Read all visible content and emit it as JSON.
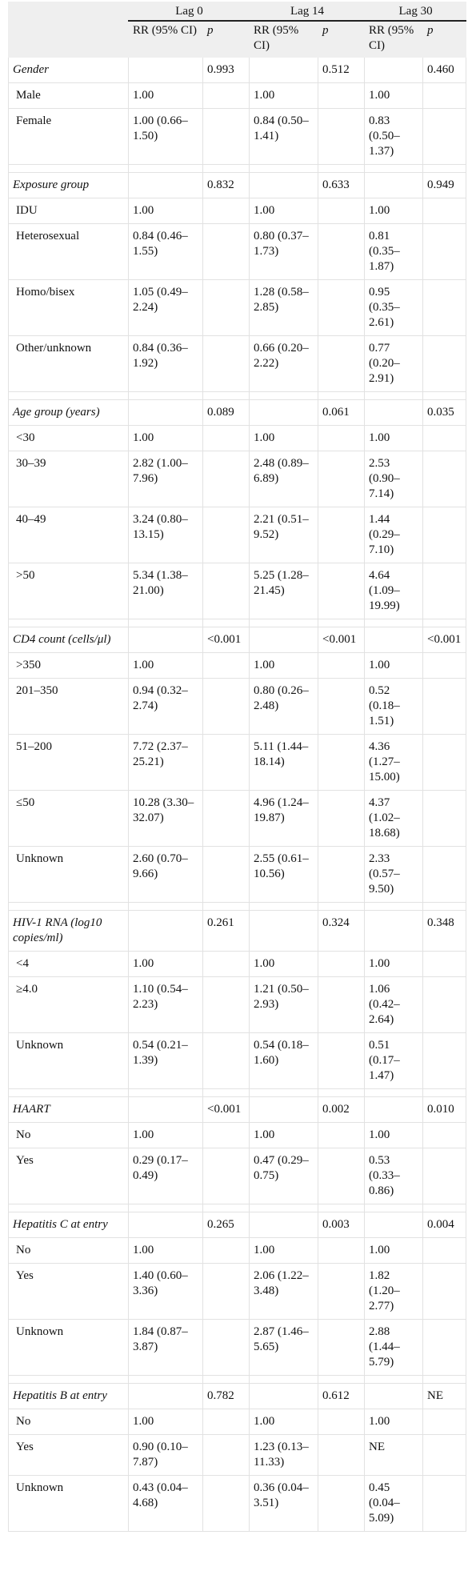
{
  "table": {
    "groups": [
      "Lag 0",
      "Lag 14",
      "Lag 30"
    ],
    "subheaders": [
      "RR (95% CI)",
      "p"
    ],
    "sections": [
      {
        "label": "Gender",
        "p": [
          "0.993",
          "0.512",
          "0.460"
        ],
        "rows": [
          [
            "Male",
            "1.00",
            "1.00",
            "1.00"
          ],
          [
            "Female",
            "1.00 (0.66–1.50)",
            "0.84 (0.50–1.41)",
            "0.83 (0.50–1.37)"
          ]
        ]
      },
      {
        "label": "Exposure group",
        "p": [
          "0.832",
          "0.633",
          "0.949"
        ],
        "rows": [
          [
            "IDU",
            "1.00",
            "1.00",
            "1.00"
          ],
          [
            "Heterosexual",
            "0.84 (0.46–1.55)",
            "0.80 (0.37–1.73)",
            "0.81 (0.35–1.87)"
          ],
          [
            "Homo/bisex",
            "1.05 (0.49–2.24)",
            "1.28 (0.58–2.85)",
            "0.95 (0.35–2.61)"
          ],
          [
            "Other/unknown",
            "0.84 (0.36–1.92)",
            "0.66 (0.20–2.22)",
            "0.77 (0.20–2.91)"
          ]
        ]
      },
      {
        "label": "Age group (years)",
        "p": [
          "0.089",
          "0.061",
          "0.035"
        ],
        "rows": [
          [
            "<30",
            "1.00",
            "1.00",
            "1.00"
          ],
          [
            "30–39",
            "2.82 (1.00–7.96)",
            "2.48 (0.89–6.89)",
            "2.53 (0.90–7.14)"
          ],
          [
            "40–49",
            "3.24 (0.80–13.15)",
            "2.21 (0.51–9.52)",
            "1.44 (0.29–7.10)"
          ],
          [
            ">50",
            "5.34 (1.38–21.00)",
            "5.25 (1.28–21.45)",
            "4.64 (1.09–19.99)"
          ]
        ]
      },
      {
        "label": "CD4 count (cells/μl)",
        "p": [
          "<0.001",
          "<0.001",
          "<0.001"
        ],
        "rows": [
          [
            ">350",
            "1.00",
            "1.00",
            "1.00"
          ],
          [
            "201–350",
            "0.94 (0.32–2.74)",
            "0.80 (0.26–2.48)",
            "0.52 (0.18–1.51)"
          ],
          [
            "51–200",
            "7.72 (2.37–25.21)",
            "5.11 (1.44–18.14)",
            "4.36 (1.27–15.00)"
          ],
          [
            "≤50",
            "10.28 (3.30–32.07)",
            "4.96 (1.24–19.87)",
            "4.37 (1.02–18.68)"
          ],
          [
            "Unknown",
            "2.60 (0.70–9.66)",
            "2.55 (0.61–10.56)",
            "2.33 (0.57–9.50)"
          ]
        ]
      },
      {
        "label": "HIV-1 RNA (log10 copies/ml)",
        "p": [
          "0.261",
          "0.324",
          "0.348"
        ],
        "rows": [
          [
            "<4",
            "1.00",
            "1.00",
            "1.00"
          ],
          [
            "≥4.0",
            "1.10 (0.54–2.23)",
            "1.21 (0.50–2.93)",
            "1.06 (0.42–2.64)"
          ],
          [
            "Unknown",
            "0.54 (0.21–1.39)",
            "0.54 (0.18–1.60)",
            "0.51 (0.17–1.47)"
          ]
        ]
      },
      {
        "label": "HAART",
        "p": [
          "<0.001",
          "0.002",
          "0.010"
        ],
        "rows": [
          [
            "No",
            "1.00",
            "1.00",
            "1.00"
          ],
          [
            "Yes",
            "0.29 (0.17–0.49)",
            "0.47 (0.29–0.75)",
            "0.53 (0.33–0.86)"
          ]
        ]
      },
      {
        "label": "Hepatitis C at entry",
        "p": [
          "0.265",
          "0.003",
          "0.004"
        ],
        "rows": [
          [
            "No",
            "1.00",
            "1.00",
            "1.00"
          ],
          [
            "Yes",
            "1.40 (0.60–3.36)",
            "2.06 (1.22–3.48)",
            "1.82 (1.20–2.77)"
          ],
          [
            "Unknown",
            "1.84 (0.87–3.87)",
            "2.87 (1.46–5.65)",
            "2.88 (1.44–5.79)"
          ]
        ]
      },
      {
        "label": "Hepatitis B at entry",
        "p": [
          "0.782",
          "0.612",
          "NE"
        ],
        "rows": [
          [
            "No",
            "1.00",
            "1.00",
            "1.00"
          ],
          [
            "Yes",
            "0.90 (0.10–7.87)",
            "1.23 (0.13–11.33)",
            "NE"
          ],
          [
            "Unknown",
            "0.43 (0.04–4.68)",
            "0.36 (0.04–3.51)",
            "0.45 (0.04–5.09)"
          ]
        ]
      }
    ]
  }
}
